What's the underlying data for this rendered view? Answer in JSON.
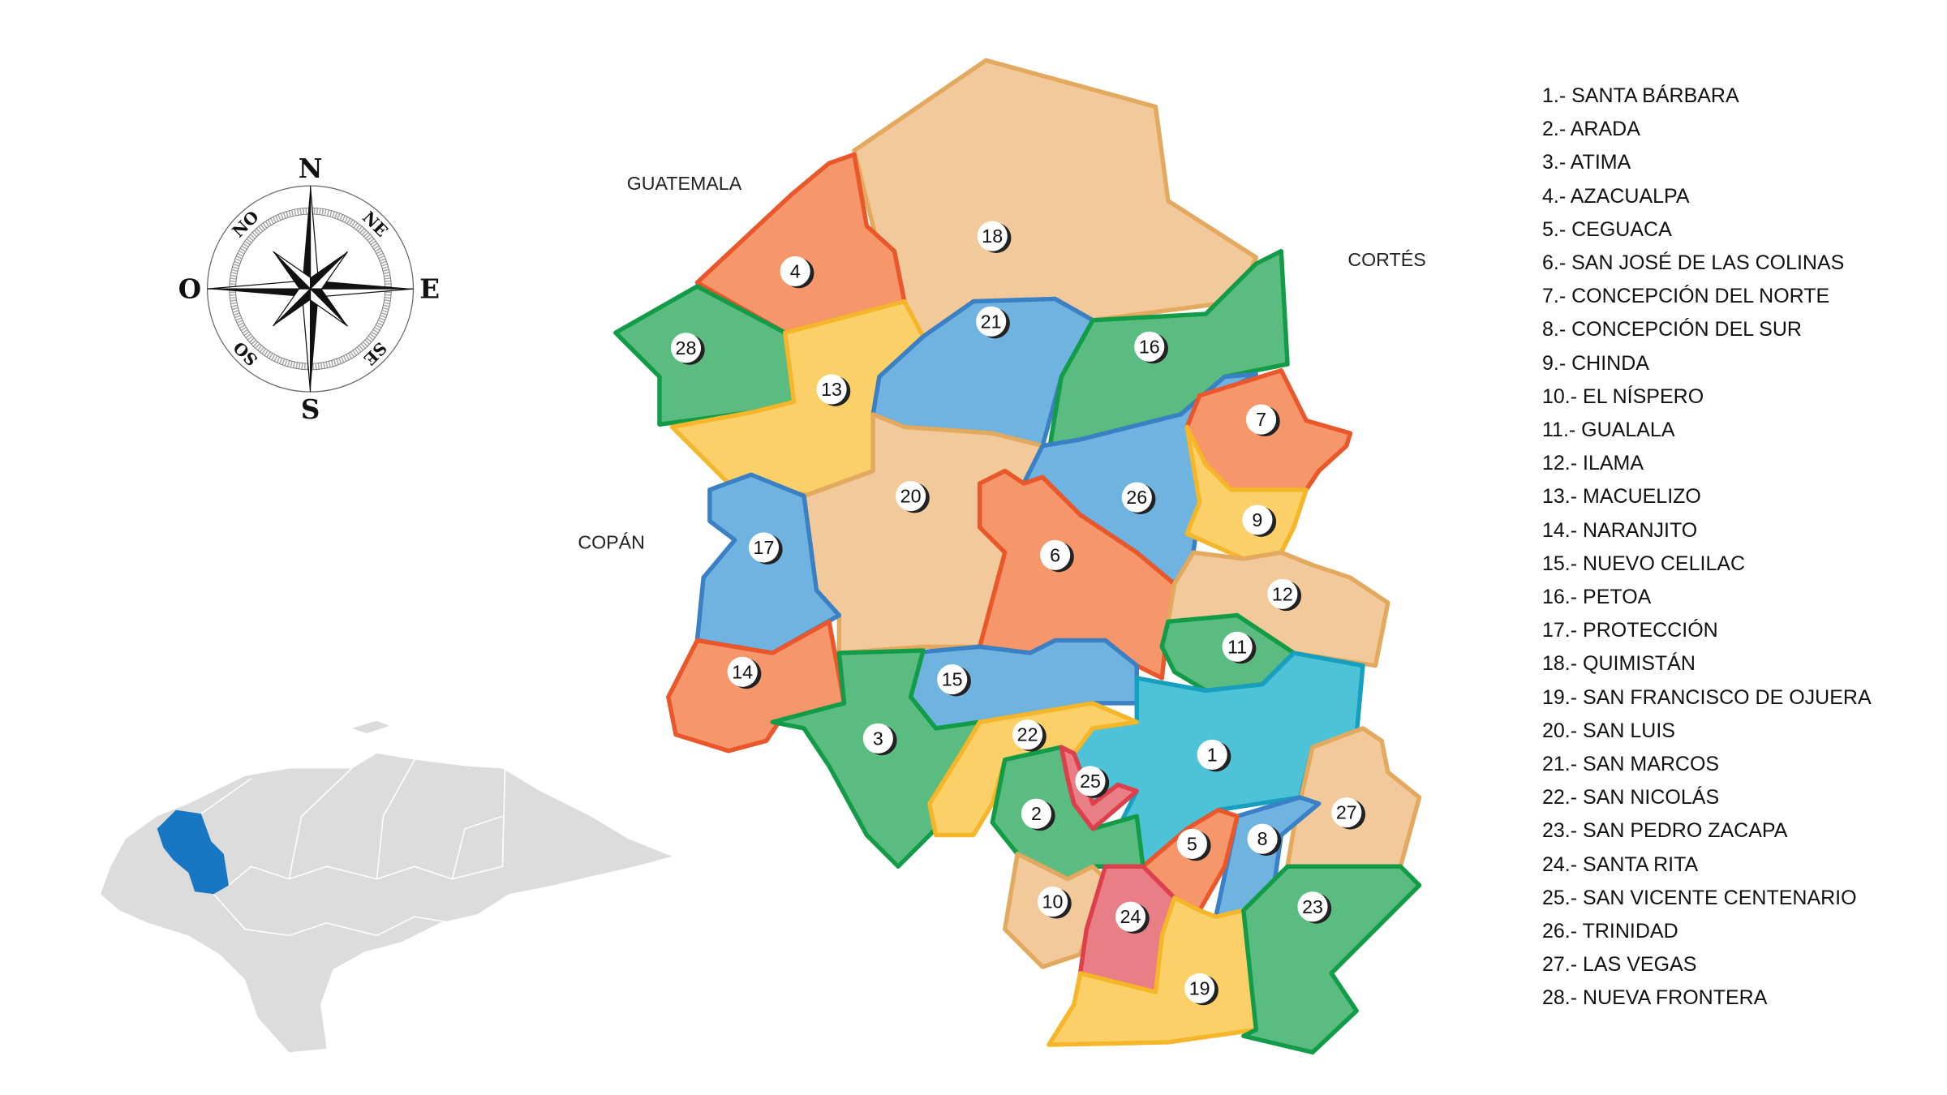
{
  "neighbors": {
    "guatemala": "GUATEMALA",
    "cortes": "CORTÉS",
    "copan": "COPÁN"
  },
  "compass": {
    "n": "N",
    "s": "S",
    "e": "E",
    "o": "O",
    "ne": "NE",
    "no": "NO",
    "se": "SE",
    "so": "SO"
  },
  "colors": {
    "orange": {
      "fill": "#f5966b",
      "stroke": "#e9572b"
    },
    "beige": {
      "fill": "#f2c99b",
      "stroke": "#e3a95e"
    },
    "green": {
      "fill": "#5bbc82",
      "stroke": "#139c47"
    },
    "yellow": {
      "fill": "#fbd068",
      "stroke": "#f5b62a"
    },
    "blue": {
      "fill": "#6fb4e0",
      "stroke": "#3a80c4"
    },
    "cyan": {
      "fill": "#4ec3d8",
      "stroke": "#179fbf"
    },
    "red": {
      "fill": "#e97f86",
      "stroke": "#de3f4c"
    },
    "inset_land": "#dcdcdc",
    "inset_highlight": "#1877c2"
  },
  "municipalities": [
    {
      "num": "1",
      "name": "1.- SANTA BÁRBARA",
      "color": "cyan"
    },
    {
      "num": "2",
      "name": "2.- ARADA",
      "color": "green"
    },
    {
      "num": "3",
      "name": "3.- ATIMA",
      "color": "green"
    },
    {
      "num": "4",
      "name": "4.- AZACUALPA",
      "color": "orange"
    },
    {
      "num": "5",
      "name": "5.- CEGUACA",
      "color": "orange"
    },
    {
      "num": "6",
      "name": "6.- SAN JOSÉ DE LAS COLINAS",
      "color": "orange"
    },
    {
      "num": "7",
      "name": "7.- CONCEPCIÓN DEL NORTE",
      "color": "orange"
    },
    {
      "num": "8",
      "name": "8.- CONCEPCIÓN DEL SUR",
      "color": "blue"
    },
    {
      "num": "9",
      "name": "9.- CHINDA",
      "color": "yellow"
    },
    {
      "num": "10",
      "name": "10.- EL NÍSPERO",
      "color": "beige"
    },
    {
      "num": "11",
      "name": "11.- GUALALA",
      "color": "green"
    },
    {
      "num": "12",
      "name": "12.- ILAMA",
      "color": "beige"
    },
    {
      "num": "13",
      "name": "13.- MACUELIZO",
      "color": "yellow"
    },
    {
      "num": "14",
      "name": "14.- NARANJITO",
      "color": "orange"
    },
    {
      "num": "15",
      "name": "15.- NUEVO CELILAC",
      "color": "blue"
    },
    {
      "num": "16",
      "name": "16.- PETOA",
      "color": "green"
    },
    {
      "num": "17",
      "name": "17.- PROTECCIÓN",
      "color": "blue"
    },
    {
      "num": "18",
      "name": "18.- QUIMISTÁN",
      "color": "beige"
    },
    {
      "num": "19",
      "name": "19.- SAN FRANCISCO DE OJUERA",
      "color": "yellow"
    },
    {
      "num": "20",
      "name": "20.- SAN LUIS",
      "color": "beige"
    },
    {
      "num": "21",
      "name": "21.- SAN MARCOS",
      "color": "blue"
    },
    {
      "num": "22",
      "name": "22.- SAN NICOLÁS",
      "color": "yellow"
    },
    {
      "num": "23",
      "name": "23.- SAN PEDRO ZACAPA",
      "color": "green"
    },
    {
      "num": "24",
      "name": "24.- SANTA RITA",
      "color": "red"
    },
    {
      "num": "25",
      "name": "25.- SAN VICENTE CENTENARIO",
      "color": "red"
    },
    {
      "num": "26",
      "name": "26.- TRINIDAD",
      "color": "blue"
    },
    {
      "num": "27",
      "name": "27.- LAS VEGAS",
      "color": "beige"
    },
    {
      "num": "28",
      "name": "28.- NUEVA FRONTERA",
      "color": "green"
    }
  ]
}
